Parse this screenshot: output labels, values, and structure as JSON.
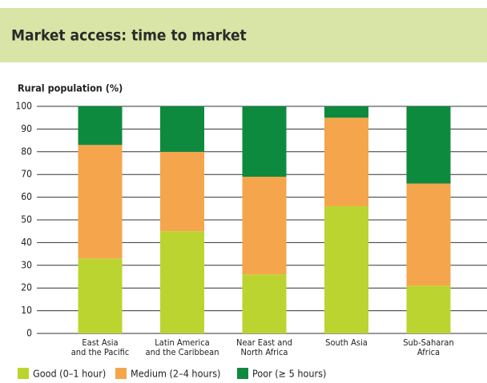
{
  "chart_data": {
    "type": "stacked_bar",
    "title": "Market access: time to market",
    "y_axis_label": "Rural population (%)",
    "categories": [
      "East Asia\nand the Pacific",
      "Latin America\nand the Caribbean",
      "Near East and\nNorth Africa",
      "South Asia",
      "Sub-Saharan\nAfrica"
    ],
    "series": [
      {
        "name": "Good (0–1 hour)",
        "color": "#bcd42f",
        "values": [
          33,
          45,
          26,
          56,
          21
        ]
      },
      {
        "name": "Medium (2–4 hours)",
        "color": "#f5a54b",
        "values": [
          50,
          35,
          43,
          39,
          45
        ]
      },
      {
        "name": "Poor (≥ 5 hours)",
        "color": "#0e8a3e",
        "values": [
          17,
          20,
          31,
          5,
          34
        ]
      }
    ],
    "ylim": [
      0,
      100
    ],
    "yticks": [
      0,
      10,
      20,
      30,
      40,
      50,
      60,
      70,
      80,
      90,
      100
    ],
    "grid": true
  }
}
